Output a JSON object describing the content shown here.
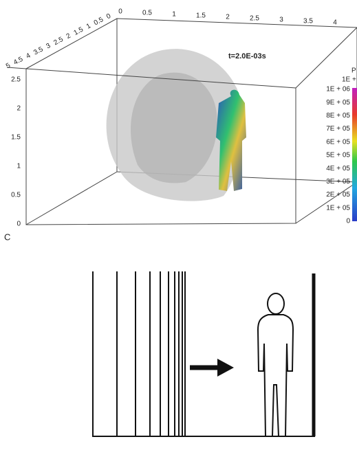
{
  "panel_label": "C",
  "time_label": "t=2.0E-03s",
  "x_ticks": [
    "0",
    "0.5",
    "1",
    "1.5",
    "2",
    "2.5",
    "3",
    "3.5",
    "4"
  ],
  "depth_ticks": [
    "5",
    "4.5",
    "4",
    "3.5",
    "3",
    "2.5",
    "2",
    "1.5",
    "1",
    "0.5",
    "0"
  ],
  "z_ticks": [
    "0",
    "0.5",
    "1",
    "1.5",
    "2",
    "2.5"
  ],
  "colorbar": {
    "title": "P",
    "top_label": "1E +",
    "labels": [
      "1E + 06",
      "9E + 05",
      "8E + 05",
      "7E + 05",
      "6E + 05",
      "5E + 05",
      "4E + 05",
      "3E + 05",
      "2E + 05",
      "1E + 05",
      "0"
    ]
  }
}
